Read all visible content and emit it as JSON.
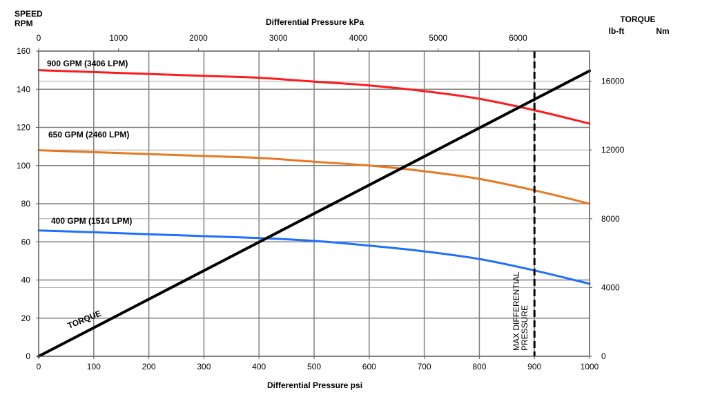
{
  "chart_data": {
    "type": "line",
    "title_top_axis": "Differential Pressure kPa",
    "xlabel": "Differential Pressure psi",
    "ylabel_left": [
      "SPEED",
      "RPM"
    ],
    "ylabel_right": "TORQUE",
    "ylabel_right_units": [
      "lb-ft",
      "Nm"
    ],
    "x_ticks": [
      0,
      100,
      200,
      300,
      400,
      500,
      600,
      700,
      800,
      900,
      1000
    ],
    "xlim": [
      0,
      1000
    ],
    "kpa_ticks": [
      0,
      1000,
      2000,
      3000,
      4000,
      5000,
      6000
    ],
    "y_ticks": [
      0,
      20,
      40,
      60,
      80,
      100,
      120,
      140,
      160
    ],
    "ylim": [
      0,
      160
    ],
    "torque_ticks": [
      0,
      4000,
      8000,
      12000,
      16000
    ],
    "torque_lim": [
      0,
      17750
    ],
    "grid": true,
    "series": [
      {
        "name": "900 GPM (3406 LPM)",
        "color": "#ff1a1a",
        "x": [
          0,
          100,
          200,
          300,
          400,
          500,
          600,
          700,
          800,
          900,
          1000
        ],
        "values": [
          150,
          149,
          148,
          147,
          146,
          144,
          142,
          139,
          135,
          129,
          122
        ]
      },
      {
        "name": "650 GPM (2460 LPM)",
        "color": "#e87722",
        "x": [
          0,
          100,
          200,
          300,
          400,
          500,
          600,
          700,
          800,
          900,
          1000
        ],
        "values": [
          108,
          107,
          106,
          105,
          104,
          102,
          100,
          97,
          93,
          87,
          80
        ]
      },
      {
        "name": "400 GPM (1514 LPM)",
        "color": "#1f6fff",
        "x": [
          0,
          100,
          200,
          300,
          400,
          500,
          600,
          700,
          800,
          900,
          1000
        ],
        "values": [
          66,
          65,
          64,
          63,
          62,
          60.5,
          58,
          55,
          51,
          45,
          38
        ]
      },
      {
        "name": "TORQUE",
        "color": "#000000",
        "axis": "right",
        "x": [
          0,
          1000
        ],
        "values": [
          0,
          16600
        ]
      }
    ],
    "annotations": [
      {
        "text": "MAX DIFFERENTIAL",
        "text2": "PRESSURE",
        "x": 900
      }
    ]
  }
}
